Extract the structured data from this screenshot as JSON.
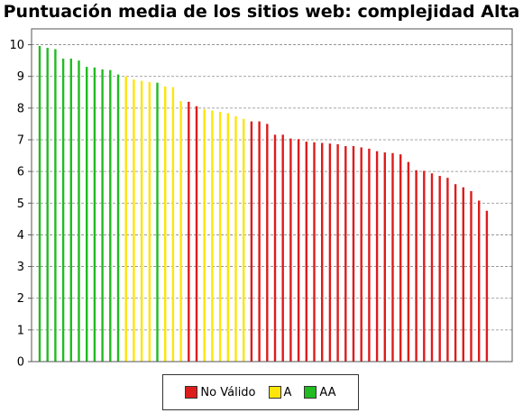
{
  "chart_data": {
    "type": "bar",
    "title": "Puntuación media de los sitios web: complejidad Alta",
    "xlabel": "",
    "ylabel": "",
    "ylim": [
      0,
      10.5
    ],
    "yticks": [
      0,
      1,
      2,
      3,
      4,
      5,
      6,
      7,
      8,
      9,
      10
    ],
    "grid": true,
    "legend_position": "bottom",
    "legend": [
      {
        "key": "nv",
        "label": "No Válido",
        "color": "#dd1c1c"
      },
      {
        "key": "a",
        "label": "A",
        "color": "#fde50a"
      },
      {
        "key": "aa",
        "label": "AA",
        "color": "#22bb22"
      }
    ],
    "values": [
      9.96,
      9.9,
      9.86,
      9.56,
      9.56,
      9.5,
      9.3,
      9.28,
      9.22,
      9.2,
      9.06,
      9.0,
      8.9,
      8.86,
      8.82,
      8.8,
      8.68,
      8.66,
      8.22,
      8.2,
      8.06,
      7.96,
      7.92,
      7.88,
      7.84,
      7.74,
      7.66,
      7.58,
      7.58,
      7.5,
      7.16,
      7.16,
      7.04,
      7.02,
      6.94,
      6.92,
      6.9,
      6.88,
      6.86,
      6.8,
      6.8,
      6.76,
      6.72,
      6.64,
      6.6,
      6.58,
      6.54,
      6.3,
      6.04,
      6.02,
      5.94,
      5.86,
      5.8,
      5.6,
      5.5,
      5.38,
      5.08,
      4.76
    ],
    "categories_level": [
      "aa",
      "aa",
      "aa",
      "aa",
      "aa",
      "aa",
      "aa",
      "aa",
      "aa",
      "aa",
      "aa",
      "a",
      "a",
      "a",
      "a",
      "aa",
      "a",
      "a",
      "a",
      "nv",
      "nv",
      "a",
      "a",
      "a",
      "a",
      "a",
      "a",
      "nv",
      "nv",
      "nv",
      "nv",
      "nv",
      "nv",
      "nv",
      "nv",
      "nv",
      "nv",
      "nv",
      "nv",
      "nv",
      "nv",
      "nv",
      "nv",
      "nv",
      "nv",
      "nv",
      "nv",
      "nv",
      "nv",
      "nv",
      "nv",
      "nv",
      "nv",
      "nv",
      "nv",
      "nv",
      "nv",
      "nv"
    ]
  }
}
